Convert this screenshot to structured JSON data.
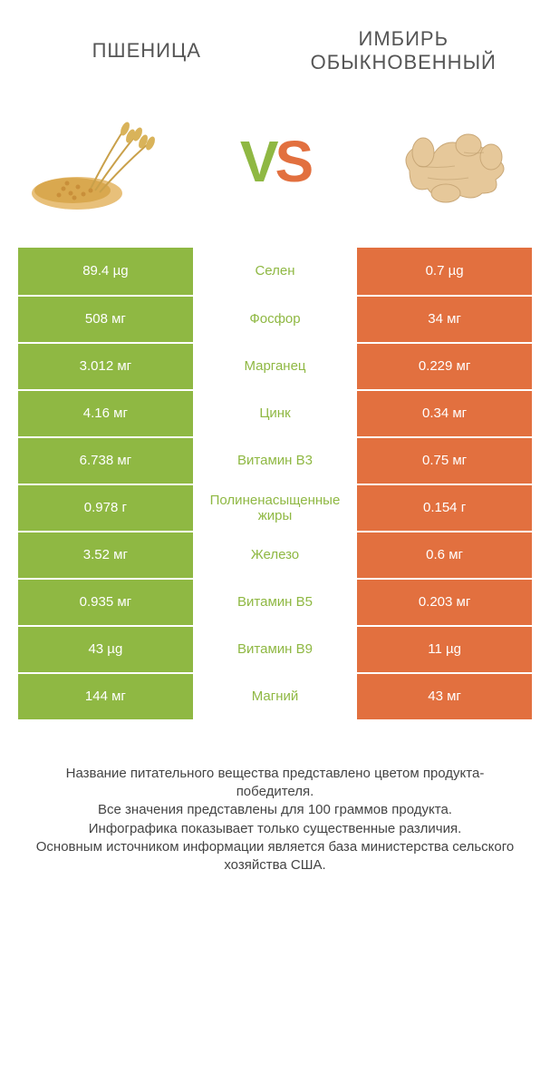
{
  "header": {
    "left_title": "ПШЕНИЦА",
    "right_title": "ИМБИРЬ ОБЫКНОВЕННЫЙ"
  },
  "vs": {
    "v": "V",
    "s": "S"
  },
  "colors": {
    "left": "#8fb843",
    "right": "#e2703f",
    "mid_text_left": "#8fb843",
    "mid_text_right": "#e2703f"
  },
  "rows": [
    {
      "left": "89.4 µg",
      "mid": "Селен",
      "right": "0.7 µg",
      "winner": "left"
    },
    {
      "left": "508 мг",
      "mid": "Фосфор",
      "right": "34 мг",
      "winner": "left"
    },
    {
      "left": "3.012 мг",
      "mid": "Марганец",
      "right": "0.229 мг",
      "winner": "left"
    },
    {
      "left": "4.16 мг",
      "mid": "Цинк",
      "right": "0.34 мг",
      "winner": "left"
    },
    {
      "left": "6.738 мг",
      "mid": "Витамин B3",
      "right": "0.75 мг",
      "winner": "left"
    },
    {
      "left": "0.978 г",
      "mid": "Полиненасыщенные жиры",
      "right": "0.154 г",
      "winner": "left"
    },
    {
      "left": "3.52 мг",
      "mid": "Железо",
      "right": "0.6 мг",
      "winner": "left"
    },
    {
      "left": "0.935 мг",
      "mid": "Витамин B5",
      "right": "0.203 мг",
      "winner": "left"
    },
    {
      "left": "43 µg",
      "mid": "Витамин B9",
      "right": "11 µg",
      "winner": "left"
    },
    {
      "left": "144 мг",
      "mid": "Магний",
      "right": "43 мг",
      "winner": "left"
    }
  ],
  "footer": {
    "line1": "Название питательного вещества представлено цветом продукта-победителя.",
    "line2": "Все значения представлены для 100 граммов продукта.",
    "line3": "Инфографика показывает только существенные различия.",
    "line4": "Основным источником информации является база министерства сельского хозяйства США."
  }
}
